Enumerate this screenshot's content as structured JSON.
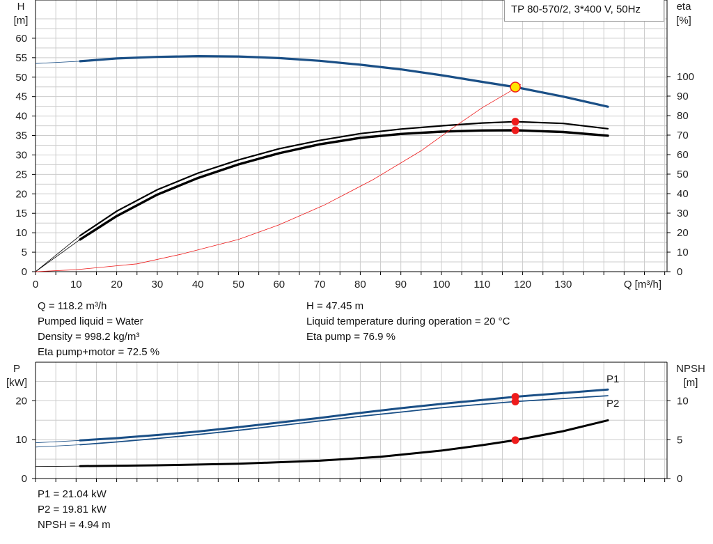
{
  "pump_label": "TP 80-570/2, 3*400 V, 50Hz",
  "colors": {
    "blue": "#1a4f86",
    "black": "#000000",
    "red": "#ee1c1c",
    "op_point": "#ffe600",
    "grid": "#cccccc"
  },
  "chart_data": [
    {
      "type": "line",
      "id": "upper",
      "xlabel": "Q [m³/h]",
      "ylabel_left": [
        "H",
        "[m]"
      ],
      "ylabel_right": [
        "eta",
        "[%]"
      ],
      "x_ticks": [
        0,
        10,
        20,
        30,
        40,
        50,
        60,
        70,
        80,
        90,
        100,
        110,
        120,
        130
      ],
      "y_ticks_left": [
        0,
        5,
        10,
        15,
        20,
        25,
        30,
        35,
        40,
        45,
        50,
        55,
        60
      ],
      "y_ticks_right": [
        0,
        10,
        20,
        30,
        40,
        50,
        60,
        70,
        80,
        90,
        100
      ],
      "xlim": [
        0,
        150
      ],
      "ylim_left": [
        0,
        65
      ],
      "ylim_right": [
        0,
        100
      ],
      "grid": true,
      "series": [
        {
          "axis": "left",
          "style": "head",
          "thin_x": [
            0,
            11
          ],
          "thin_y": [
            53.5,
            54.1
          ],
          "x": [
            11,
            20,
            30,
            40,
            50,
            60,
            70,
            80,
            90,
            100,
            110,
            118.2,
            130,
            141
          ],
          "y": [
            54.1,
            54.8,
            55.2,
            55.4,
            55.3,
            54.9,
            54.2,
            53.2,
            52.0,
            50.5,
            48.8,
            47.45,
            45.0,
            42.4
          ]
        },
        {
          "axis": "right",
          "style": "eta_upper",
          "thin_x": [
            0,
            11
          ],
          "thin_y": [
            0,
            18.5
          ],
          "x": [
            11,
            20,
            30,
            40,
            50,
            60,
            70,
            80,
            90,
            100,
            110,
            118.2,
            130,
            141
          ],
          "y": [
            18.5,
            31,
            42,
            50.5,
            57.3,
            63,
            67.3,
            70.8,
            73.1,
            74.8,
            76.2,
            76.9,
            76.0,
            73.3
          ]
        },
        {
          "axis": "right",
          "style": "eta_lower",
          "thin_x": [
            0,
            11
          ],
          "thin_y": [
            0,
            16.5
          ],
          "x": [
            11,
            20,
            30,
            40,
            50,
            60,
            70,
            80,
            90,
            100,
            110,
            118.2,
            130,
            141
          ],
          "y": [
            16.5,
            28.5,
            39.5,
            48,
            55,
            60.7,
            65.3,
            68.6,
            70.6,
            71.8,
            72.4,
            72.5,
            71.6,
            69.7
          ]
        },
        {
          "axis": "right",
          "style": "system",
          "x": [
            0,
            10,
            25,
            36,
            50,
            60,
            71,
            83,
            95,
            103,
            110,
            118.2,
            119.5
          ],
          "y": [
            0,
            1,
            4,
            9,
            16.5,
            24,
            34,
            47,
            62,
            74,
            84,
            94,
            96
          ]
        }
      ],
      "points": [
        {
          "axis": "left",
          "x": 118.2,
          "y": 47.45,
          "kind": "operating"
        },
        {
          "axis": "right",
          "x": 118.2,
          "y": 76.9,
          "kind": "marker"
        },
        {
          "axis": "right",
          "x": 118.2,
          "y": 72.5,
          "kind": "marker"
        }
      ]
    },
    {
      "type": "line",
      "id": "lower",
      "ylabel_left": [
        "P",
        "[kW]"
      ],
      "ylabel_right": [
        "NPSH",
        "[m]"
      ],
      "y_ticks_left": [
        0,
        10,
        20
      ],
      "y_ticks_right": [
        0,
        5,
        10
      ],
      "xlim": [
        0,
        150
      ],
      "ylim_left": [
        0,
        30
      ],
      "ylim_right": [
        0,
        15
      ],
      "grid": true,
      "series": [
        {
          "name": "P1",
          "axis": "left",
          "style": "p1",
          "thin_x": [
            0,
            11
          ],
          "thin_y": [
            9.2,
            9.8
          ],
          "x": [
            11,
            20,
            30,
            40,
            50,
            60,
            70,
            80,
            90,
            100,
            110,
            118.2,
            130,
            141
          ],
          "y": [
            9.8,
            10.4,
            11.2,
            12.1,
            13.2,
            14.4,
            15.6,
            16.9,
            18.1,
            19.2,
            20.2,
            21.04,
            22.0,
            22.9
          ]
        },
        {
          "name": "P2",
          "axis": "left",
          "style": "p2",
          "thin_x": [
            0,
            11
          ],
          "thin_y": [
            8.1,
            8.7
          ],
          "x": [
            11,
            20,
            30,
            40,
            50,
            60,
            70,
            80,
            90,
            100,
            110,
            118.2,
            130,
            141
          ],
          "y": [
            8.7,
            9.4,
            10.3,
            11.3,
            12.4,
            13.6,
            14.8,
            16.0,
            17.1,
            18.2,
            19.1,
            19.81,
            20.6,
            21.3
          ]
        },
        {
          "axis": "right",
          "style": "npsh",
          "thin_x": [
            0,
            11
          ],
          "thin_y": [
            1.55,
            1.6
          ],
          "x": [
            11,
            30,
            50,
            70,
            85,
            100,
            110,
            118.2,
            130,
            141
          ],
          "y": [
            1.6,
            1.7,
            1.9,
            2.3,
            2.8,
            3.6,
            4.3,
            4.94,
            6.1,
            7.5
          ]
        }
      ],
      "points": [
        {
          "axis": "left",
          "x": 118.2,
          "y": 21.04,
          "kind": "marker"
        },
        {
          "axis": "left",
          "x": 118.2,
          "y": 19.81,
          "kind": "marker"
        },
        {
          "axis": "right",
          "x": 118.2,
          "y": 4.94,
          "kind": "marker"
        }
      ]
    }
  ],
  "info_upper_left": [
    "Q = 118.2 m³/h",
    "Pumped liquid = Water",
    "Density = 998.2 kg/m³",
    "Eta pump+motor = 72.5 %"
  ],
  "info_upper_right": [
    "H = 47.45 m",
    "Liquid temperature during operation = 20 °C",
    "Eta pump = 76.9 %"
  ],
  "info_lower": [
    "P1 = 21.04 kW",
    "P2 = 19.81 kW",
    "NPSH = 4.94 m"
  ]
}
